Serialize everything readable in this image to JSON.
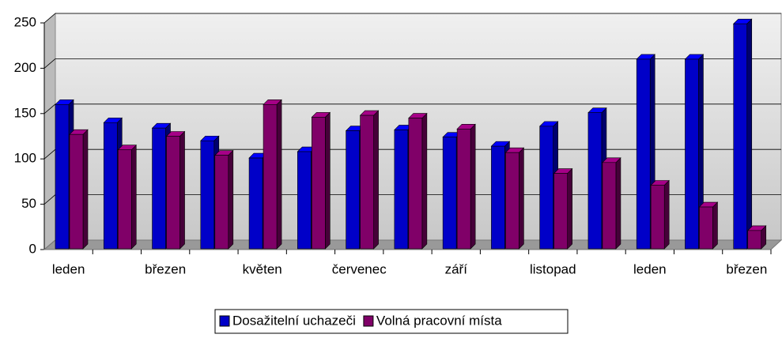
{
  "chart_data": {
    "type": "bar3d",
    "categories": [
      "leden",
      null,
      "březen",
      null,
      "květen",
      null,
      "červenec",
      null,
      "září",
      null,
      "listopad",
      null,
      "leden",
      null,
      "březen"
    ],
    "series": [
      {
        "name": "Dosažitelní uchazeči",
        "color": "#0000c8",
        "values": [
          160,
          140,
          134,
          120,
          101,
          108,
          131,
          132,
          124,
          114,
          136,
          151,
          210,
          210,
          249
        ]
      },
      {
        "name": "Volná pracovní místa",
        "color": "#800068",
        "values": [
          127,
          110,
          125,
          104,
          160,
          146,
          148,
          145,
          133,
          107,
          84,
          96,
          71,
          47,
          21
        ]
      }
    ],
    "ylim": [
      0,
      250
    ],
    "yticks": [
      0,
      50,
      100,
      150,
      200,
      250
    ],
    "grid": true,
    "legend": "bottom"
  }
}
